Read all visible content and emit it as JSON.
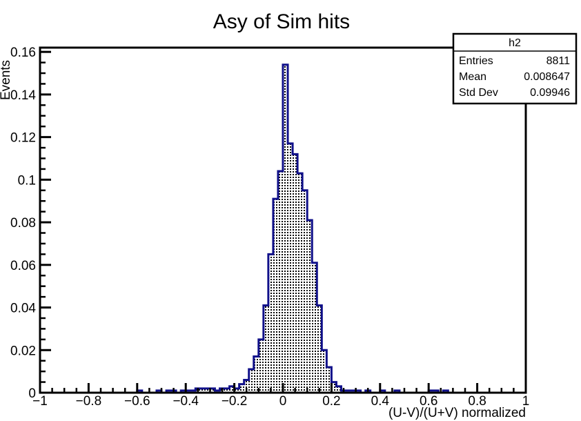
{
  "chart_data": {
    "type": "bar",
    "title": "Asy of Sim hits",
    "xlabel": "(U-V)/(U+V) normalized",
    "ylabel": "Events",
    "xlim": [
      -1,
      1
    ],
    "ylim": [
      0,
      0.162
    ],
    "x_ticks": [
      "−1",
      "−0.8",
      "−0.6",
      "−0.4",
      "−0.2",
      "0",
      "0.2",
      "0.4",
      "0.6",
      "0.8",
      "1"
    ],
    "y_ticks": [
      "0",
      "0.02",
      "0.04",
      "0.06",
      "0.08",
      "0.1",
      "0.12",
      "0.14",
      "0.16"
    ],
    "bin_width": 0.02,
    "series": [
      {
        "x": [
          -0.6,
          -0.58,
          -0.56,
          -0.54,
          -0.52,
          -0.5,
          -0.48,
          -0.46,
          -0.44,
          -0.42,
          -0.4,
          -0.38,
          -0.36,
          -0.34,
          -0.32,
          -0.3,
          -0.28,
          -0.26,
          -0.24,
          -0.22,
          -0.2,
          -0.18,
          -0.16,
          -0.14,
          -0.12,
          -0.1,
          -0.08,
          -0.06,
          -0.04,
          -0.02,
          0,
          0.02,
          0.04,
          0.06,
          0.08,
          0.1,
          0.12,
          0.14,
          0.16,
          0.18,
          0.2,
          0.22,
          0.24,
          0.26,
          0.28,
          0.3,
          0.32,
          0.34,
          0.36,
          0.38,
          0.4,
          0.42,
          0.44,
          0.46,
          0.48,
          0.5,
          0.52,
          0.54,
          0.56,
          0.58,
          0.6,
          0.62,
          0.64,
          0.66
        ],
        "y": [
          0.001,
          0,
          0,
          0,
          0.001,
          0,
          0.001,
          0.001,
          0,
          0.001,
          0.001,
          0.001,
          0.002,
          0.002,
          0.002,
          0.002,
          0.001,
          0.002,
          0.002,
          0.003,
          0.002,
          0.004,
          0.006,
          0.011,
          0.017,
          0.025,
          0.041,
          0.065,
          0.091,
          0.104,
          0.154,
          0.117,
          0.112,
          0.103,
          0.095,
          0.081,
          0.061,
          0.041,
          0.02,
          0.012,
          0.005,
          0.003,
          0.001,
          0.001,
          0.001,
          0.001,
          0,
          0.001,
          0,
          0,
          0.001,
          0,
          0,
          0.001,
          0,
          0,
          0,
          0,
          0,
          0,
          0.001,
          0.001,
          0,
          0.001
        ]
      }
    ],
    "colors": {
      "line": "#10108a",
      "fill_pattern": "#000000",
      "axis": "#000000"
    },
    "grid": false,
    "legend": "none"
  },
  "stats": {
    "name": "h2",
    "rows": [
      {
        "label": "Entries",
        "value": "8811"
      },
      {
        "label": "Mean",
        "value": "0.008647"
      },
      {
        "label": "Std Dev",
        "value": "0.09946"
      }
    ]
  }
}
